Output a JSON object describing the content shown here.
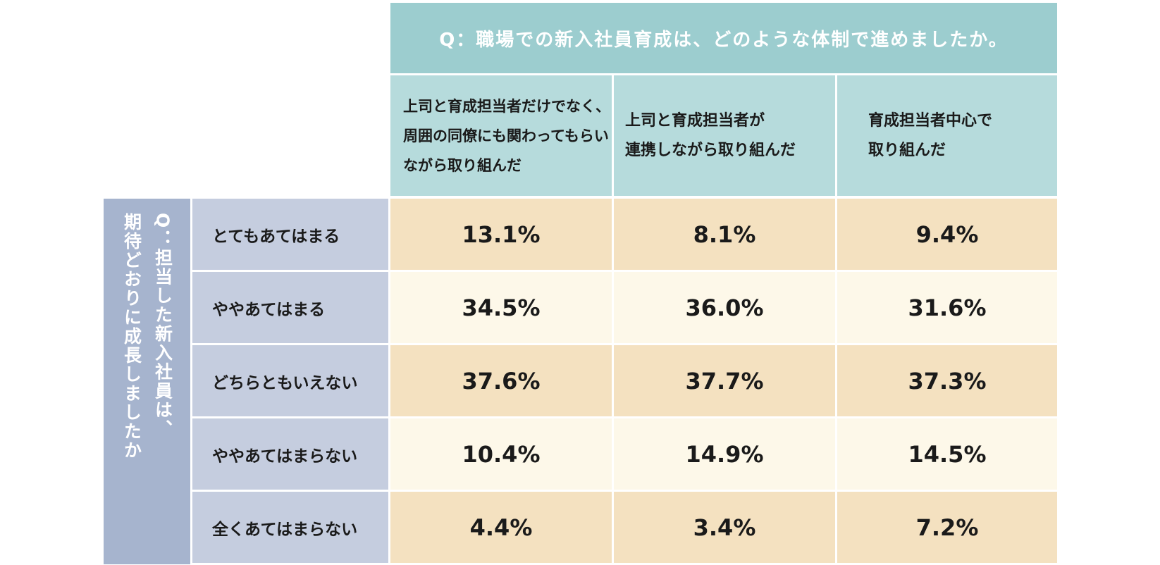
{
  "chart_data": {
    "type": "table",
    "title": "Q：職場での新入社員育成は、どのような体制で進めましたか。",
    "row_question": "Q：担当した新入社員は、\n期待どおりに成長しましたか",
    "columns": [
      "上司と育成担当者だけでなく、\n周囲の同僚にも関わってもらい\nながら取り組んだ",
      "上司と育成担当者が\n連携しながら取り組んだ",
      "育成担当者中心で\n取り組んだ"
    ],
    "rows": [
      {
        "label": "とてもあてはまる",
        "values": [
          "13.1%",
          "8.1%",
          "9.4%"
        ]
      },
      {
        "label": "ややあてはまる",
        "values": [
          "34.5%",
          "36.0%",
          "31.6%"
        ]
      },
      {
        "label": "どちらともいえない",
        "values": [
          "37.6%",
          "37.7%",
          "37.3%"
        ]
      },
      {
        "label": "ややあてはまらない",
        "values": [
          "10.4%",
          "14.9%",
          "14.5%"
        ]
      },
      {
        "label": "全くあてはまらない",
        "values": [
          "4.4%",
          "3.4%",
          "7.2%"
        ]
      }
    ]
  }
}
